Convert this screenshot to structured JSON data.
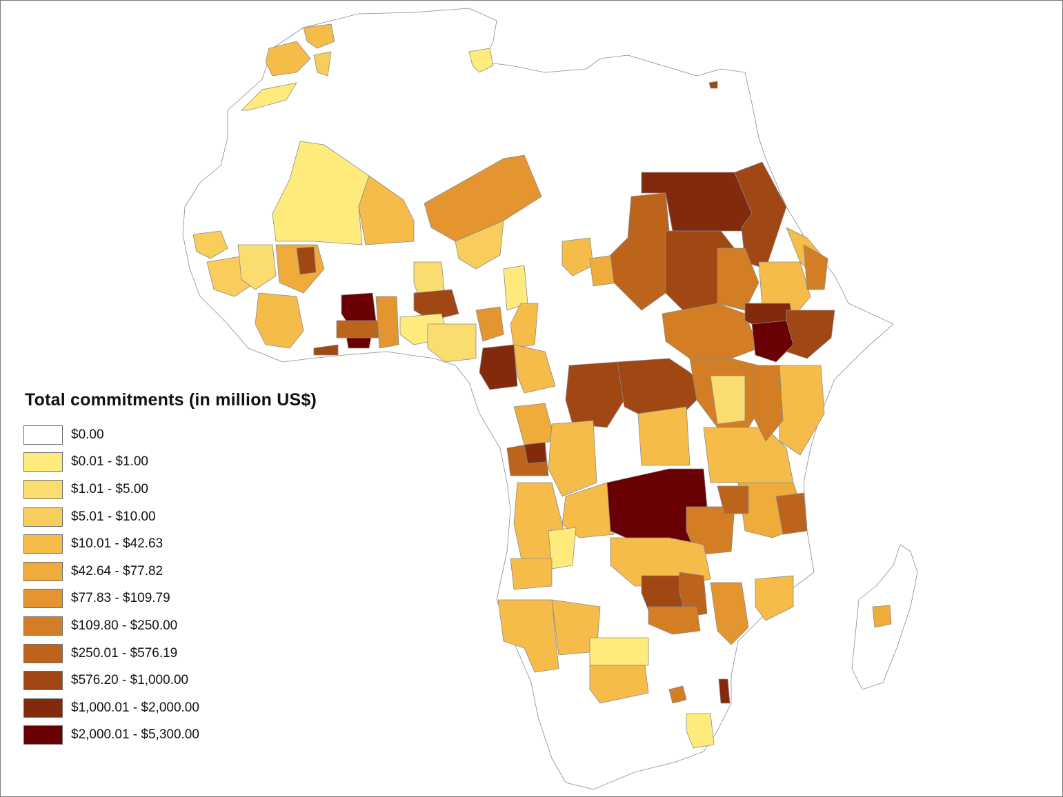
{
  "legend": {
    "title": "Total commitments (in million US$)",
    "classes": [
      {
        "label": "$0.00",
        "color": "#ffffff"
      },
      {
        "label": "$0.01 - $1.00",
        "color": "#ffeb7b"
      },
      {
        "label": "$1.01 - $5.00",
        "color": "#fbdd6f"
      },
      {
        "label": "$5.01 - $10.00",
        "color": "#f8cd5c"
      },
      {
        "label": "$10.01 - $42.63",
        "color": "#f5bc4a"
      },
      {
        "label": "$42.64 - $77.82",
        "color": "#f0ac3b"
      },
      {
        "label": "$77.83 - $109.79",
        "color": "#e49530"
      },
      {
        "label": "$109.80 - $250.00",
        "color": "#d37e25"
      },
      {
        "label": "$250.01 - $576.19",
        "color": "#bc631c"
      },
      {
        "label": "$576.20 - $1,000.00",
        "color": "#a04713"
      },
      {
        "label": "$1,000.01 - $2,000.00",
        "color": "#832a0c"
      },
      {
        "label": "$2,000.01 - $5,300.00",
        "color": "#690004"
      }
    ]
  },
  "map": {
    "subject": "Africa",
    "boundary_color": "#8a8a8a"
  }
}
